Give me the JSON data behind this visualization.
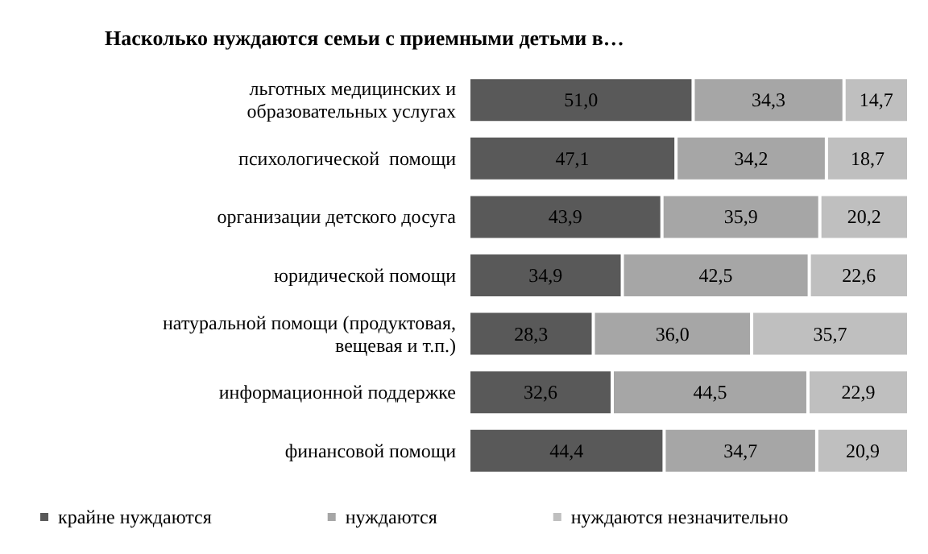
{
  "chart_data": {
    "type": "bar",
    "orientation": "horizontal",
    "stacked": true,
    "title": "Насколько нуждаются семьи с приемными детьми в…",
    "legend": "bottom left",
    "categories": [
      "льготных медицинских и\nобразовательных услугах",
      "психологической  помощи",
      "организации детского досуга",
      "юридической помощи",
      "натуральной помощи (продуктовая,\nвещевая и т.п.)",
      "информационной поддержке",
      "финансовой помощи"
    ],
    "series": [
      {
        "name": "крайне нуждаются",
        "color": "#595959",
        "values": [
          51.0,
          47.1,
          43.9,
          34.9,
          28.3,
          32.6,
          44.4
        ],
        "value_labels": [
          "51,0",
          "47,1",
          "43,9",
          "34,9",
          "28,3",
          "32,6",
          "44,4"
        ]
      },
      {
        "name": "нуждаются",
        "color": "#a6a6a6",
        "values": [
          34.3,
          34.2,
          35.9,
          42.5,
          36.0,
          44.5,
          34.7
        ],
        "value_labels": [
          "34,3",
          "34,2",
          "35,9",
          "42,5",
          "36,0",
          "44,5",
          "34,7"
        ]
      },
      {
        "name": "нуждаются незначительно",
        "color": "#bfbfbf",
        "values": [
          14.7,
          18.7,
          20.2,
          22.6,
          35.7,
          22.9,
          20.9
        ],
        "value_labels": [
          "14,7",
          "18,7",
          "20,2",
          "22,6",
          "35,7",
          "22,9",
          "20,9"
        ]
      }
    ]
  }
}
